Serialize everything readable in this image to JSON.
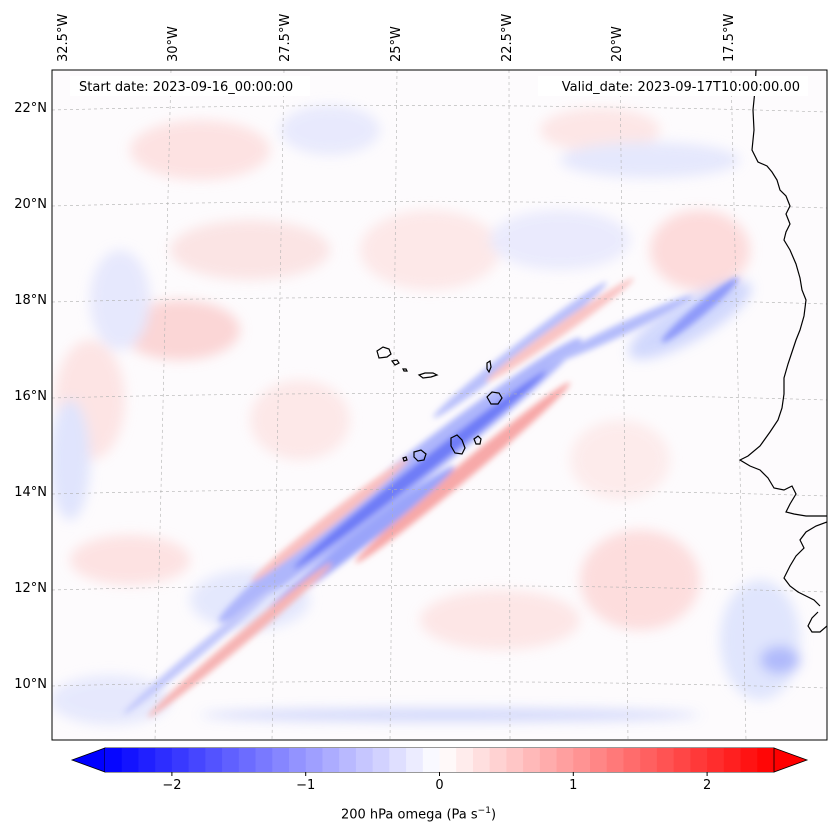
{
  "annotations": {
    "start_date": "Start date: 2023-09-16_00:00:00",
    "valid_date": "Valid_date: 2023-09-17T10:00:00.00"
  },
  "longitude_labels": [
    "32.5°W",
    "30°W",
    "27.5°W",
    "25°W",
    "22.5°W",
    "20°W",
    "17.5°W"
  ],
  "latitude_labels": [
    "22°N",
    "20°N",
    "18°N",
    "16°N",
    "14°N",
    "12°N",
    "10°N"
  ],
  "colorbar": {
    "label_text": "200 hPa omega (Pa s",
    "label_exponent": "−1",
    "label_close": ")",
    "min": -2.5,
    "max": 2.5,
    "ticks": [
      "−2",
      "−1",
      "0",
      "1",
      "2"
    ],
    "tick_values": [
      -2,
      -1,
      0,
      1,
      2
    ],
    "low_color": "#0000ff",
    "mid_color": "#ffffff",
    "high_color": "#ff0000"
  },
  "colors": {
    "coastline": "#000000",
    "gridline": "#b0b0b0",
    "frame": "#000000"
  }
}
